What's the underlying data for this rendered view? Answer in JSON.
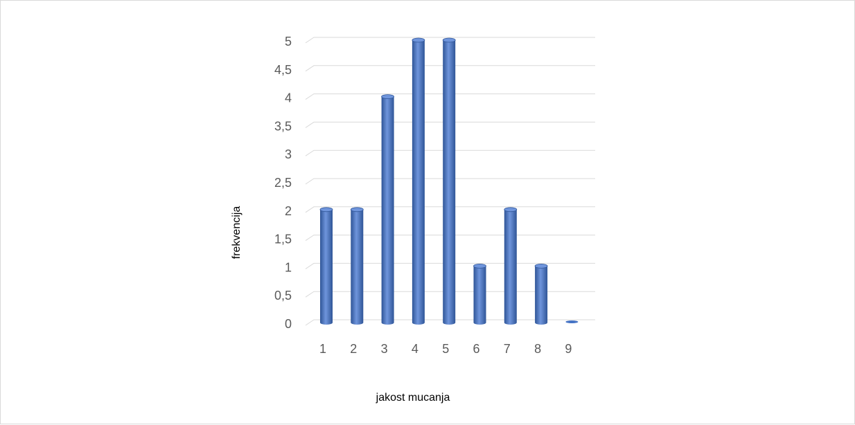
{
  "chart_data": {
    "type": "bar",
    "categories": [
      "1",
      "2",
      "3",
      "4",
      "5",
      "6",
      "7",
      "8",
      "9"
    ],
    "values": [
      2,
      2,
      4,
      5,
      5,
      1,
      2,
      1,
      0
    ],
    "title": "",
    "xlabel": "jakost mucanja",
    "ylabel": "frekvencija",
    "ylim": [
      0,
      5
    ],
    "yticks": [
      "0",
      "0,5",
      "1",
      "1,5",
      "2",
      "2,5",
      "3",
      "3,5",
      "4",
      "4,5",
      "5"
    ],
    "grid": true,
    "legend": "none",
    "bar_style": "3d-cylinder",
    "colors": {
      "bar": "#4472c4",
      "bar_dark": "#2f5597",
      "bar_light": "#6f95dc",
      "grid": "#d9d9d9",
      "tick_text": "#595959"
    }
  }
}
